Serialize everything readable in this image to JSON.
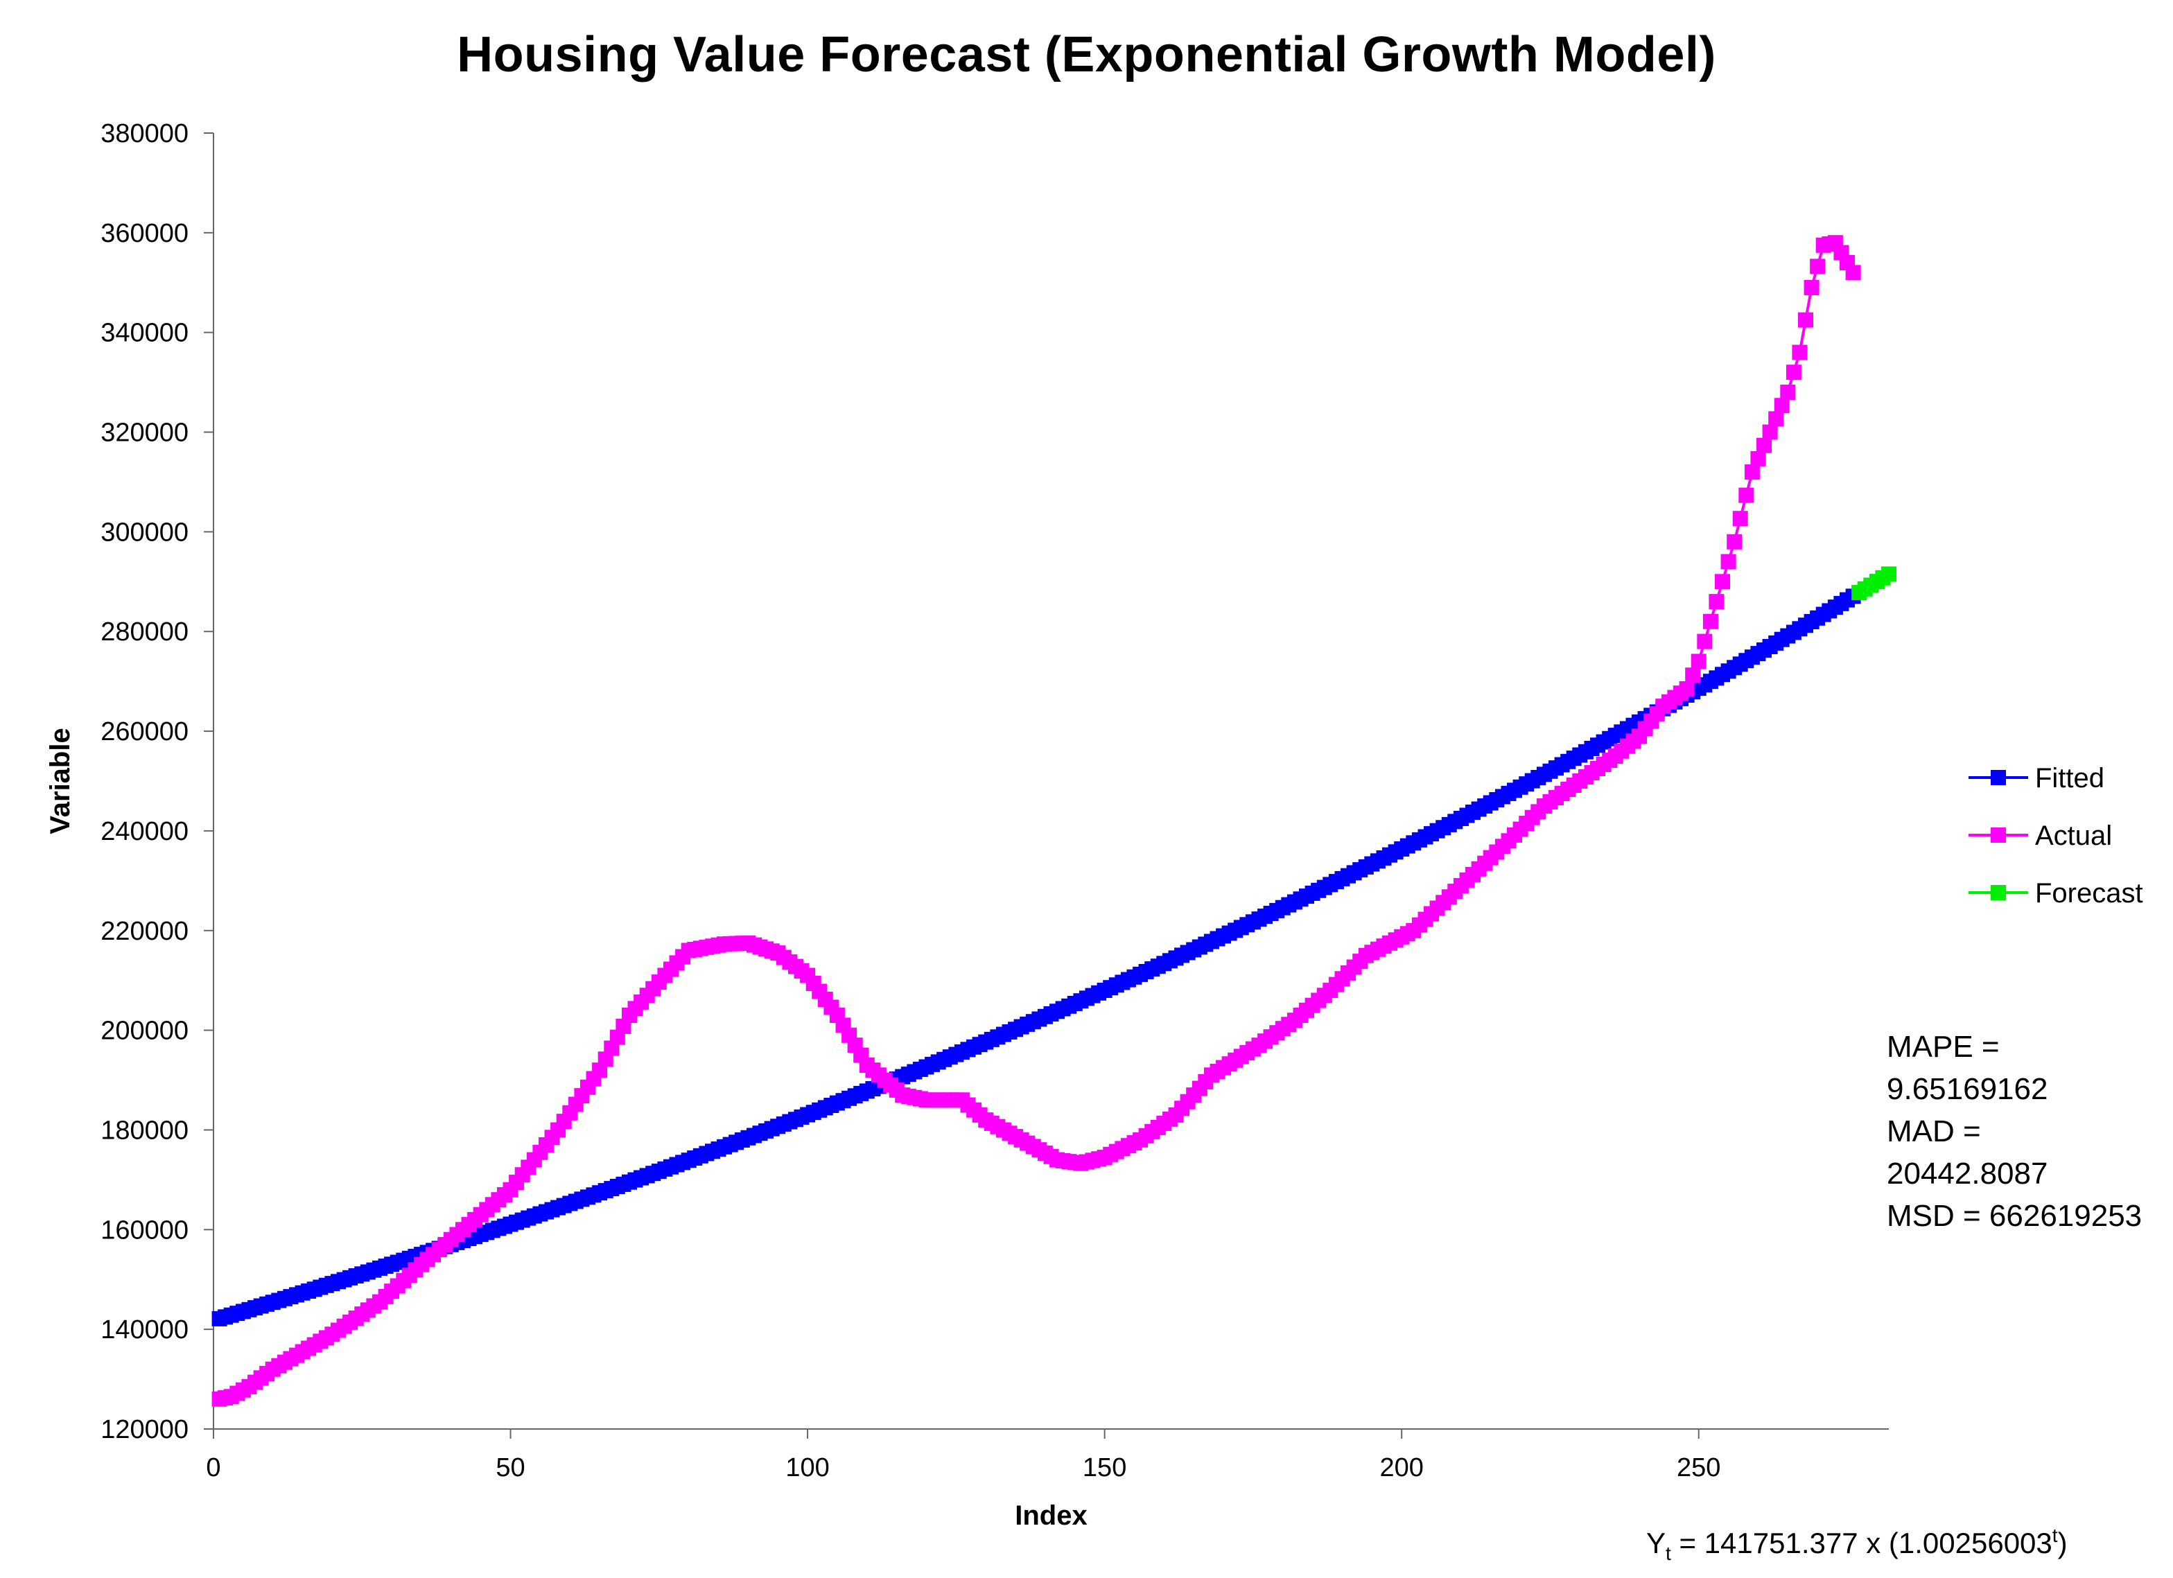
{
  "chart_data": {
    "type": "line",
    "title": "Housing Value Forecast (Exponential Growth Model)",
    "xlabel": "Index",
    "ylabel": "Variable",
    "xlim": [
      0,
      282
    ],
    "ylim": [
      120000,
      380000
    ],
    "xticks": [
      0,
      50,
      100,
      150,
      200,
      250
    ],
    "yticks": [
      120000,
      140000,
      160000,
      180000,
      200000,
      220000,
      240000,
      260000,
      280000,
      300000,
      320000,
      340000,
      360000,
      380000
    ],
    "legend_position": "right",
    "model": {
      "a": 141751.377,
      "b": 1.00256003,
      "fitted_range": [
        1,
        276
      ],
      "forecast_range": [
        277,
        282
      ]
    },
    "series": [
      {
        "name": "Fitted",
        "color": "#0000ff",
        "description_points": [
          [
            1,
            142114
          ],
          [
            50,
            161000
          ],
          [
            100,
            183200
          ],
          [
            150,
            208000
          ],
          [
            200,
            236300
          ],
          [
            250,
            268500
          ],
          [
            276,
            286800
          ]
        ]
      },
      {
        "name": "Actual",
        "color": "#ff00ff",
        "knots": [
          [
            1,
            126000
          ],
          [
            3,
            126500
          ],
          [
            6,
            128500
          ],
          [
            10,
            132000
          ],
          [
            20,
            139000
          ],
          [
            28,
            145500
          ],
          [
            35,
            153000
          ],
          [
            42,
            160000
          ],
          [
            50,
            168000
          ],
          [
            58,
            180000
          ],
          [
            65,
            192000
          ],
          [
            70,
            203000
          ],
          [
            76,
            211000
          ],
          [
            80,
            216000
          ],
          [
            86,
            217300
          ],
          [
            90,
            217500
          ],
          [
            95,
            215500
          ],
          [
            100,
            211000
          ],
          [
            105,
            203000
          ],
          [
            110,
            193000
          ],
          [
            116,
            187000
          ],
          [
            120,
            186000
          ],
          [
            126,
            186000
          ],
          [
            130,
            182000
          ],
          [
            136,
            178000
          ],
          [
            142,
            174000
          ],
          [
            146,
            173300
          ],
          [
            150,
            174500
          ],
          [
            156,
            178000
          ],
          [
            162,
            183000
          ],
          [
            168,
            191000
          ],
          [
            176,
            197000
          ],
          [
            182,
            202000
          ],
          [
            188,
            208000
          ],
          [
            194,
            215000
          ],
          [
            202,
            220000
          ],
          [
            210,
            229000
          ],
          [
            218,
            238000
          ],
          [
            224,
            245000
          ],
          [
            230,
            250000
          ],
          [
            236,
            255000
          ],
          [
            240,
            259000
          ],
          [
            244,
            265000
          ],
          [
            248,
            268500
          ],
          [
            250,
            274000
          ],
          [
            253,
            286000
          ],
          [
            256,
            298000
          ],
          [
            259,
            312000
          ],
          [
            262,
            320000
          ],
          [
            265,
            328000
          ],
          [
            267,
            336000
          ],
          [
            269,
            349000
          ],
          [
            271,
            357500
          ],
          [
            273,
            358000
          ],
          [
            274,
            356000
          ],
          [
            276,
            352000
          ]
        ]
      },
      {
        "name": "Forecast",
        "color": "#00ee00",
        "x": [
          277,
          278,
          279,
          280,
          281,
          282
        ]
      }
    ],
    "annotations": {
      "mape_label": "MAPE =",
      "mape_value": "9.65169162",
      "mad_label": "MAD =",
      "mad_value": "20442.8087",
      "msd_text": "MSD = 662619253",
      "equation": {
        "y_letter": "Y",
        "y_sub": "t",
        "middle": " = 141751.377 x (1.00256003",
        "exp": "t",
        "end": ")"
      }
    }
  }
}
